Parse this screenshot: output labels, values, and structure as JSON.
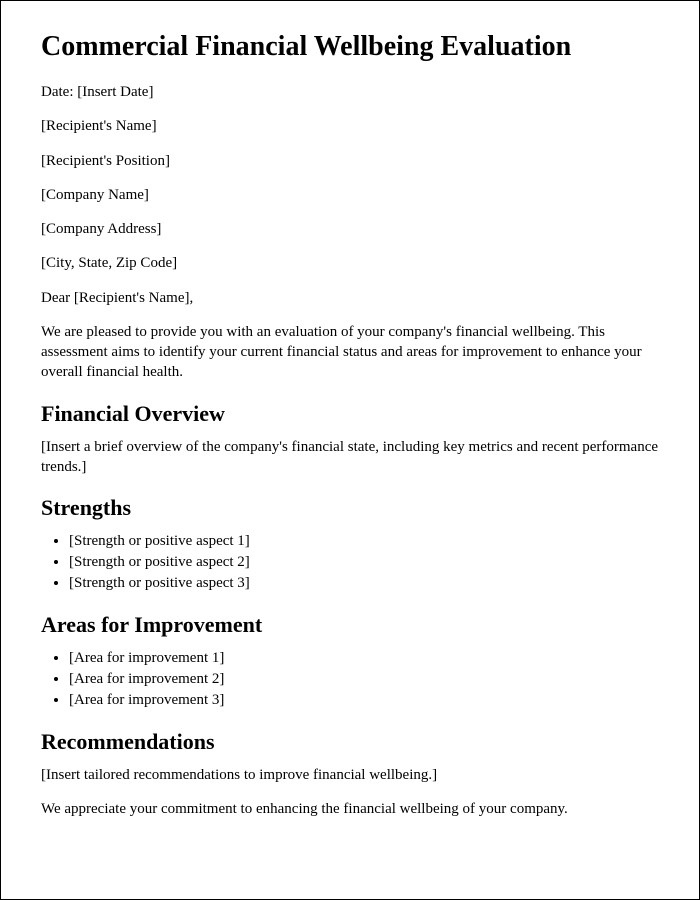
{
  "title": "Commercial Financial Wellbeing Evaluation",
  "meta": {
    "date_line": "Date: [Insert Date]",
    "recipient_name": "[Recipient's Name]",
    "recipient_position": "[Recipient's Position]",
    "company_name": "[Company Name]",
    "company_address": "[Company Address]",
    "city_state_zip": "[City, State, Zip Code]"
  },
  "salutation": "Dear [Recipient's Name],",
  "intro": "We are pleased to provide you with an evaluation of your company's financial wellbeing. This assessment aims to identify your current financial status and areas for improvement to enhance your overall financial health.",
  "sections": {
    "overview": {
      "heading": "Financial Overview",
      "body": "[Insert a brief overview of the company's financial state, including key metrics and recent performance trends.]"
    },
    "strengths": {
      "heading": "Strengths",
      "items": [
        "[Strength or positive aspect 1]",
        "[Strength or positive aspect 2]",
        "[Strength or positive aspect 3]"
      ]
    },
    "improvement": {
      "heading": "Areas for Improvement",
      "items": [
        "[Area for improvement 1]",
        "[Area for improvement 2]",
        "[Area for improvement 3]"
      ]
    },
    "recommendations": {
      "heading": "Recommendations",
      "body": "[Insert tailored recommendations to improve financial wellbeing.]"
    }
  },
  "closing": "We appreciate your commitment to enhancing the financial wellbeing of your company."
}
